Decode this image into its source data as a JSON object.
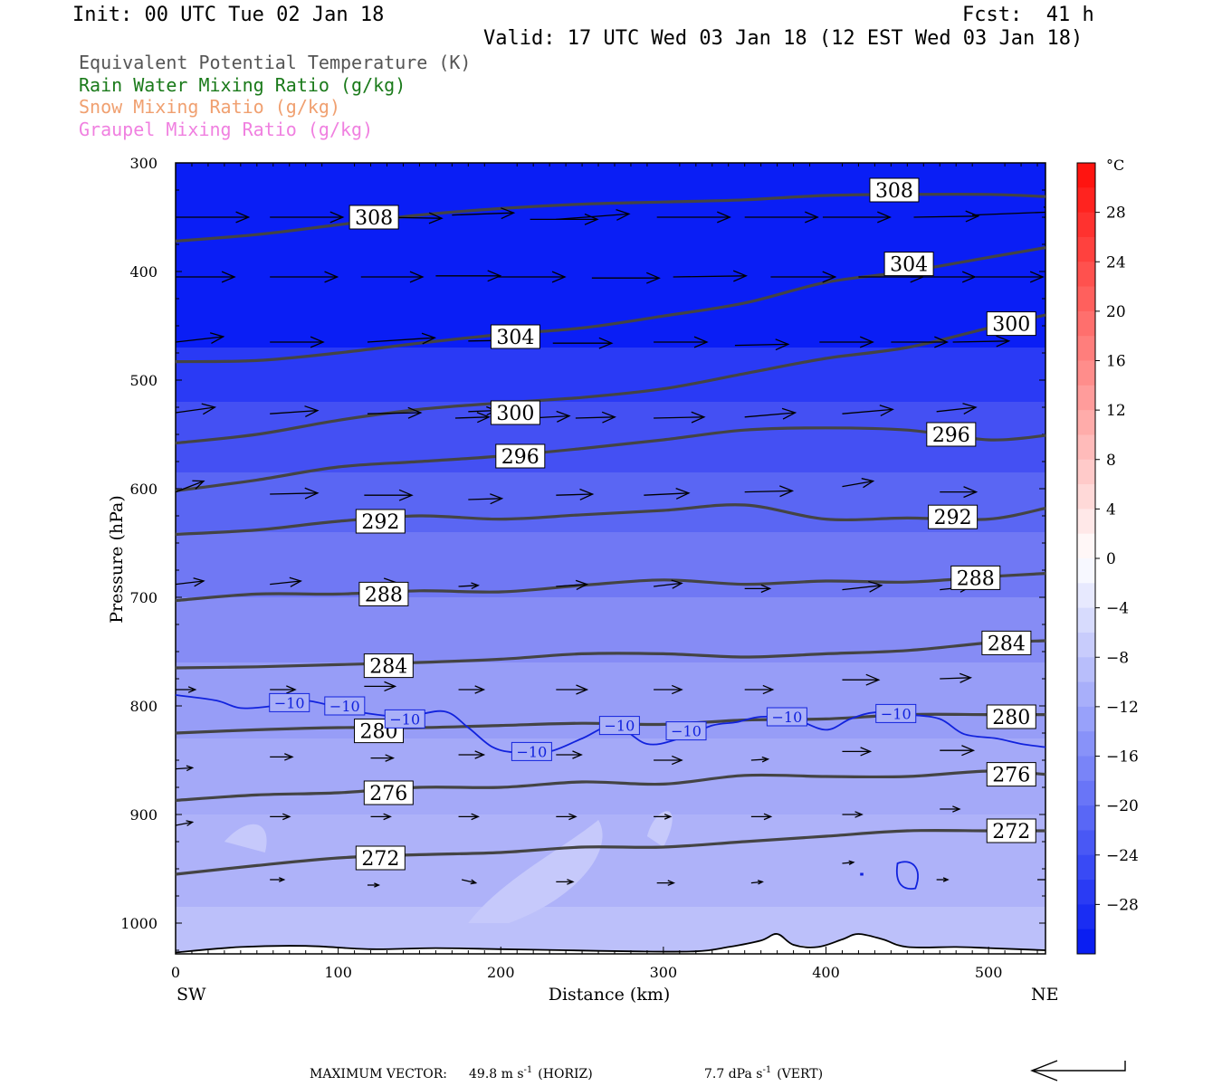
{
  "header": {
    "init": "Init: 00 UTC Tue 02 Jan 18",
    "fcst": "Fcst:  41 h",
    "valid": "Valid: 17 UTC Wed 03 Jan 18 (12 EST Wed 03 Jan 18)"
  },
  "legend_lines": [
    {
      "text": "Equivalent Potential Temperature (K)",
      "color": "#555555"
    },
    {
      "text": "Rain Water Mixing Ratio (g/kg)",
      "color": "#1a7a1a"
    },
    {
      "text": "Snow Mixing Ratio (g/kg)",
      "color": "#f0a070"
    },
    {
      "text": "Graupel Mixing Ratio (g/kg)",
      "color": "#f080e0"
    }
  ],
  "footer": {
    "max_vector_label": "MAXIMUM VECTOR:",
    "horiz": "49.8 m s",
    "horiz_sup": "-1",
    "horiz_tag": "(HORIZ)",
    "vert": "7.7 dPa s",
    "vert_sup": "-1",
    "vert_tag": "(VERT)"
  },
  "chart_data": {
    "type": "cross-section",
    "xlabel": "Distance (km)",
    "ylabel": "Pressure (hPa)",
    "x_ticks": [
      0,
      100,
      200,
      300,
      400,
      500
    ],
    "y_ticks": [
      300,
      400,
      500,
      600,
      700,
      800,
      900,
      1000
    ],
    "xlim": [
      0,
      535
    ],
    "ylim": [
      300,
      1030
    ],
    "left_end_label": "SW",
    "right_end_label": "NE",
    "colorbar": {
      "unit": "°C",
      "ticks": [
        28,
        24,
        20,
        16,
        12,
        8,
        4,
        0,
        -4,
        -8,
        -12,
        -16,
        -20,
        -24,
        -28
      ],
      "range": [
        -32,
        32
      ]
    },
    "theta_e": [
      {
        "value": 308,
        "label": "308",
        "points": [
          [
            0,
            372
          ],
          [
            50,
            366
          ],
          [
            100,
            357
          ],
          [
            150,
            348
          ],
          [
            200,
            342
          ],
          [
            250,
            338
          ],
          [
            300,
            336
          ],
          [
            350,
            334
          ],
          [
            400,
            330
          ],
          [
            450,
            329
          ],
          [
            500,
            329
          ],
          [
            535,
            331
          ]
        ],
        "labels_at": [
          [
            122,
            350
          ],
          [
            442,
            325
          ]
        ]
      },
      {
        "value": 304,
        "label": "304",
        "points": [
          [
            0,
            483
          ],
          [
            50,
            482
          ],
          [
            100,
            475
          ],
          [
            150,
            466
          ],
          [
            200,
            458
          ],
          [
            250,
            452
          ],
          [
            300,
            441
          ],
          [
            350,
            429
          ],
          [
            400,
            410
          ],
          [
            450,
            400
          ],
          [
            500,
            387
          ],
          [
            535,
            378
          ]
        ],
        "labels_at": [
          [
            209,
            460
          ],
          [
            451,
            393
          ]
        ]
      },
      {
        "value": 300,
        "label": "300",
        "points": [
          [
            0,
            558
          ],
          [
            50,
            550
          ],
          [
            100,
            537
          ],
          [
            150,
            527
          ],
          [
            200,
            521
          ],
          [
            250,
            516
          ],
          [
            300,
            508
          ],
          [
            350,
            494
          ],
          [
            400,
            480
          ],
          [
            450,
            470
          ],
          [
            500,
            452
          ],
          [
            535,
            440
          ]
        ],
        "labels_at": [
          [
            209,
            530
          ],
          [
            514,
            448
          ]
        ]
      },
      {
        "value": 296,
        "label": "296",
        "points": [
          [
            0,
            602
          ],
          [
            50,
            592
          ],
          [
            100,
            580
          ],
          [
            150,
            575
          ],
          [
            200,
            570
          ],
          [
            250,
            563
          ],
          [
            300,
            555
          ],
          [
            350,
            546
          ],
          [
            400,
            544
          ],
          [
            450,
            546
          ],
          [
            500,
            555
          ],
          [
            535,
            551
          ]
        ],
        "labels_at": [
          [
            212,
            570
          ],
          [
            477,
            550
          ]
        ]
      },
      {
        "value": 292,
        "label": "292",
        "points": [
          [
            0,
            642
          ],
          [
            50,
            638
          ],
          [
            100,
            630
          ],
          [
            150,
            625
          ],
          [
            200,
            628
          ],
          [
            250,
            624
          ],
          [
            300,
            620
          ],
          [
            350,
            615
          ],
          [
            400,
            628
          ],
          [
            450,
            627
          ],
          [
            500,
            628
          ],
          [
            535,
            618
          ]
        ],
        "labels_at": [
          [
            126,
            630
          ],
          [
            478,
            626
          ]
        ]
      },
      {
        "value": 288,
        "label": "288",
        "points": [
          [
            0,
            703
          ],
          [
            50,
            697
          ],
          [
            100,
            697
          ],
          [
            150,
            694
          ],
          [
            200,
            695
          ],
          [
            250,
            689
          ],
          [
            300,
            684
          ],
          [
            350,
            688
          ],
          [
            400,
            685
          ],
          [
            450,
            686
          ],
          [
            500,
            681
          ],
          [
            535,
            678
          ]
        ],
        "labels_at": [
          [
            128,
            697
          ],
          [
            492,
            682
          ]
        ]
      },
      {
        "value": 284,
        "label": "284",
        "points": [
          [
            0,
            765
          ],
          [
            50,
            764
          ],
          [
            100,
            762
          ],
          [
            150,
            760
          ],
          [
            200,
            757
          ],
          [
            250,
            752
          ],
          [
            300,
            752
          ],
          [
            350,
            755
          ],
          [
            400,
            752
          ],
          [
            450,
            749
          ],
          [
            500,
            742
          ],
          [
            535,
            740
          ]
        ],
        "labels_at": [
          [
            131,
            763
          ],
          [
            511,
            742
          ]
        ]
      },
      {
        "value": 280,
        "label": "280",
        "points": [
          [
            0,
            825
          ],
          [
            50,
            822
          ],
          [
            100,
            820
          ],
          [
            150,
            820
          ],
          [
            200,
            818
          ],
          [
            250,
            816
          ],
          [
            300,
            817
          ],
          [
            350,
            813
          ],
          [
            400,
            812
          ],
          [
            450,
            808
          ],
          [
            500,
            808
          ],
          [
            535,
            808
          ]
        ],
        "labels_at": [
          [
            125,
            823
          ],
          [
            514,
            810
          ]
        ]
      },
      {
        "value": 276,
        "label": "276",
        "points": [
          [
            0,
            887
          ],
          [
            50,
            882
          ],
          [
            100,
            880
          ],
          [
            150,
            875
          ],
          [
            200,
            875
          ],
          [
            250,
            870
          ],
          [
            300,
            872
          ],
          [
            350,
            864
          ],
          [
            400,
            865
          ],
          [
            450,
            865
          ],
          [
            500,
            860
          ],
          [
            535,
            863
          ]
        ],
        "labels_at": [
          [
            131,
            880
          ],
          [
            514,
            863
          ]
        ]
      },
      {
        "value": 272,
        "label": "272",
        "points": [
          [
            0,
            955
          ],
          [
            50,
            947
          ],
          [
            100,
            940
          ],
          [
            150,
            937
          ],
          [
            200,
            935
          ],
          [
            250,
            930
          ],
          [
            300,
            930
          ],
          [
            350,
            925
          ],
          [
            400,
            920
          ],
          [
            450,
            915
          ],
          [
            500,
            915
          ],
          [
            535,
            915
          ]
        ],
        "labels_at": [
          [
            126,
            940
          ],
          [
            514,
            915
          ]
        ]
      }
    ],
    "temp_contour_minus10": {
      "value": -10,
      "label": "−10",
      "points": [
        [
          0,
          790
        ],
        [
          25,
          795
        ],
        [
          40,
          802
        ],
        [
          60,
          800
        ],
        [
          80,
          795
        ],
        [
          110,
          805
        ],
        [
          140,
          810
        ],
        [
          165,
          805
        ],
        [
          180,
          820
        ],
        [
          195,
          838
        ],
        [
          210,
          843
        ],
        [
          230,
          842
        ],
        [
          250,
          830
        ],
        [
          270,
          818
        ],
        [
          290,
          835
        ],
        [
          310,
          830
        ],
        [
          330,
          818
        ],
        [
          345,
          815
        ],
        [
          360,
          810
        ],
        [
          380,
          812
        ],
        [
          400,
          822
        ],
        [
          415,
          812
        ],
        [
          430,
          806
        ],
        [
          450,
          808
        ],
        [
          470,
          812
        ],
        [
          485,
          826
        ],
        [
          505,
          830
        ],
        [
          520,
          835
        ],
        [
          535,
          838
        ]
      ],
      "labels_at": [
        [
          70,
          797
        ],
        [
          104,
          800
        ],
        [
          141,
          812
        ],
        [
          219,
          842
        ],
        [
          273,
          818
        ],
        [
          314,
          823
        ],
        [
          376,
          810
        ],
        [
          443,
          807
        ]
      ]
    },
    "wind_vectors": [
      [
        0,
        350,
        52,
        0
      ],
      [
        58,
        350,
        52,
        0
      ],
      [
        124,
        350,
        46,
        1
      ],
      [
        170,
        348,
        44,
        -2
      ],
      [
        218,
        352,
        48,
        0
      ],
      [
        234,
        352,
        52,
        -5
      ],
      [
        296,
        350,
        52,
        0
      ],
      [
        350,
        350,
        52,
        0
      ],
      [
        398,
        350,
        48,
        0
      ],
      [
        454,
        350,
        46,
        -1
      ],
      [
        490,
        348,
        60,
        -3
      ],
      [
        0,
        405,
        42,
        0
      ],
      [
        58,
        405,
        48,
        0
      ],
      [
        114,
        405,
        44,
        0
      ],
      [
        160,
        404,
        46,
        0
      ],
      [
        198,
        405,
        48,
        0
      ],
      [
        256,
        406,
        48,
        0
      ],
      [
        306,
        405,
        52,
        -1
      ],
      [
        366,
        405,
        46,
        0
      ],
      [
        420,
        405,
        46,
        0
      ],
      [
        452,
        405,
        46,
        0
      ],
      [
        492,
        405,
        48,
        0
      ],
      [
        0,
        465,
        34,
        -5
      ],
      [
        58,
        465,
        38,
        0
      ],
      [
        118,
        465,
        48,
        -4
      ],
      [
        180,
        464,
        44,
        -1
      ],
      [
        232,
        466,
        42,
        0
      ],
      [
        294,
        465,
        38,
        0
      ],
      [
        344,
        468,
        38,
        -1
      ],
      [
        396,
        465,
        38,
        0
      ],
      [
        440,
        465,
        40,
        0
      ],
      [
        478,
        465,
        40,
        -1
      ],
      [
        0,
        530,
        28,
        -5
      ],
      [
        58,
        531,
        34,
        -3
      ],
      [
        118,
        531,
        38,
        -1
      ],
      [
        180,
        529,
        20,
        -1
      ],
      [
        172,
        535,
        24,
        -1
      ],
      [
        218,
        535,
        28,
        -2
      ],
      [
        246,
        535,
        28,
        -1
      ],
      [
        294,
        535,
        36,
        -1
      ],
      [
        350,
        534,
        36,
        -4
      ],
      [
        410,
        531,
        36,
        -4
      ],
      [
        468,
        529,
        28,
        -4
      ],
      [
        0,
        603,
        20,
        -10
      ],
      [
        58,
        605,
        34,
        -1
      ],
      [
        116,
        606,
        34,
        0
      ],
      [
        180,
        610,
        24,
        -1
      ],
      [
        234,
        606,
        26,
        -1
      ],
      [
        288,
        606,
        32,
        -2
      ],
      [
        350,
        603,
        34,
        -1
      ],
      [
        410,
        598,
        22,
        -5
      ],
      [
        470,
        603,
        26,
        0
      ],
      [
        0,
        688,
        20,
        -3
      ],
      [
        58,
        688,
        22,
        -3
      ],
      [
        116,
        688,
        22,
        -2
      ],
      [
        174,
        690,
        14,
        -1
      ],
      [
        234,
        690,
        22,
        -2
      ],
      [
        294,
        690,
        20,
        -3
      ],
      [
        350,
        692,
        18,
        0
      ],
      [
        410,
        693,
        28,
        -4
      ],
      [
        470,
        693,
        22,
        -3
      ],
      [
        0,
        785,
        14,
        0
      ],
      [
        58,
        785,
        18,
        0
      ],
      [
        116,
        782,
        22,
        0
      ],
      [
        174,
        785,
        18,
        0
      ],
      [
        234,
        785,
        22,
        0
      ],
      [
        294,
        785,
        20,
        0
      ],
      [
        350,
        785,
        20,
        0
      ],
      [
        410,
        776,
        26,
        0
      ],
      [
        470,
        775,
        22,
        -1
      ],
      [
        0,
        858,
        12,
        -1
      ],
      [
        58,
        847,
        16,
        0
      ],
      [
        120,
        848,
        16,
        0
      ],
      [
        174,
        845,
        18,
        0
      ],
      [
        234,
        845,
        18,
        0
      ],
      [
        294,
        850,
        20,
        0
      ],
      [
        354,
        850,
        12,
        -1
      ],
      [
        410,
        842,
        20,
        0
      ],
      [
        470,
        841,
        24,
        0
      ],
      [
        0,
        910,
        12,
        -3
      ],
      [
        58,
        902,
        14,
        0
      ],
      [
        120,
        902,
        14,
        0
      ],
      [
        174,
        902,
        14,
        0
      ],
      [
        234,
        902,
        14,
        0
      ],
      [
        294,
        902,
        12,
        0
      ],
      [
        354,
        902,
        14,
        0
      ],
      [
        410,
        900,
        14,
        0
      ],
      [
        470,
        895,
        14,
        0
      ],
      [
        58,
        960,
        10,
        0
      ],
      [
        118,
        965,
        8,
        0
      ],
      [
        176,
        960,
        10,
        3
      ],
      [
        234,
        962,
        12,
        0
      ],
      [
        296,
        963,
        12,
        0
      ],
      [
        354,
        963,
        8,
        -1
      ],
      [
        410,
        945,
        8,
        -1
      ],
      [
        468,
        960,
        8,
        0
      ],
      [
        530,
        960,
        10,
        0
      ]
    ],
    "max_vector_arrow": {
      "label": ""
    }
  }
}
